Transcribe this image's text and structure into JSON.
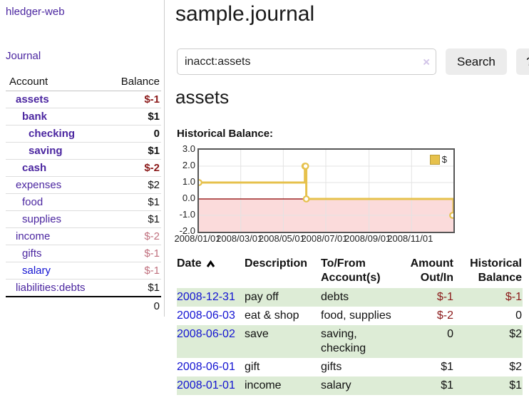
{
  "sidebar": {
    "app_title": "hledger-web",
    "nav_journal": "Journal",
    "header": {
      "account": "Account",
      "balance": "Balance"
    },
    "accounts": [
      {
        "label": "assets",
        "indent": 1,
        "bold": true,
        "balance": "$-1",
        "balance_style": "negstrong"
      },
      {
        "label": "bank",
        "indent": 2,
        "bold": true,
        "balance": "$1",
        "balance_style": "pos"
      },
      {
        "label": "checking",
        "indent": 3,
        "bold": true,
        "balance": "0",
        "balance_style": "pos"
      },
      {
        "label": "saving",
        "indent": 3,
        "bold": true,
        "balance": "$1",
        "balance_style": "pos"
      },
      {
        "label": "cash",
        "indent": 2,
        "bold": true,
        "balance": "$-2",
        "balance_style": "negstrong"
      },
      {
        "label": "expenses",
        "indent": 1,
        "bold": false,
        "balance": "$2",
        "balance_style": "pos"
      },
      {
        "label": "food",
        "indent": 2,
        "bold": false,
        "balance": "$1",
        "balance_style": "pos"
      },
      {
        "label": "supplies",
        "indent": 2,
        "bold": false,
        "balance": "$1",
        "balance_style": "pos"
      },
      {
        "label": "income",
        "indent": 1,
        "bold": false,
        "balance": "$-2",
        "balance_style": "negsoft"
      },
      {
        "label": "gifts",
        "indent": 2,
        "bold": false,
        "balance": "$-1",
        "balance_style": "negsoft"
      },
      {
        "label": "salary",
        "indent": 2,
        "bold": false,
        "balance": "$-1",
        "balance_style": "negsoft",
        "blue": true
      },
      {
        "label": "liabilities:debts",
        "indent": 1,
        "bold": false,
        "balance": "$1",
        "balance_style": "pos",
        "last": true
      }
    ],
    "total": "0"
  },
  "main": {
    "title": "sample.journal",
    "search": {
      "value": "inacct:assets",
      "clear_icon": "×",
      "button_label": "Search",
      "help_label": "?"
    },
    "account_heading": "assets",
    "chart_label": "Historical Balance:"
  },
  "chart_data": {
    "type": "line",
    "title": "Historical Balance",
    "step": true,
    "x_range": [
      "2008-01-01",
      "2008-12-31"
    ],
    "y_range": [
      -2,
      3
    ],
    "y_ticks": [
      {
        "v": 3,
        "label": "3.0"
      },
      {
        "v": 2,
        "label": "2.0"
      },
      {
        "v": 1,
        "label": "1.0"
      },
      {
        "v": 0,
        "label": "0.0"
      },
      {
        "v": -1,
        "label": "-1.0"
      },
      {
        "v": -2,
        "label": "-2.0"
      }
    ],
    "x_ticks": [
      {
        "date": "2008-01-01",
        "label": "2008/01/01"
      },
      {
        "date": "2008-03-01",
        "label": "2008/03/01"
      },
      {
        "date": "2008-05-01",
        "label": "2008/05/01"
      },
      {
        "date": "2008-07-01",
        "label": "2008/07/01"
      },
      {
        "date": "2008-09-01",
        "label": "2008/09/01"
      },
      {
        "date": "2008-11-01",
        "label": "2008/11/01"
      }
    ],
    "series": [
      {
        "name": "$",
        "points": [
          [
            "2008-01-01",
            1
          ],
          [
            "2008-06-01",
            2
          ],
          [
            "2008-06-02",
            2
          ],
          [
            "2008-06-03",
            0
          ],
          [
            "2008-12-31",
            -1
          ]
        ]
      }
    ],
    "legend": [
      {
        "label": "$",
        "color": "#e6c14c"
      }
    ],
    "legend_position": "top-right",
    "grid": true,
    "colors": {
      "line": "#e6c14c",
      "negative_fill": "#fbdbdb",
      "zero_line": "#8b0000",
      "gridline": "#e3e3e3",
      "border": "#565656"
    }
  },
  "register": {
    "headers": {
      "date": "Date",
      "description": "Description",
      "tofrom": "To/From Account(s)",
      "amount": "Amount Out/In",
      "balance": "Historical Balance"
    },
    "rows": [
      {
        "date": "2008-12-31",
        "description": "pay off",
        "accounts": "debts",
        "amount": "$-1",
        "balance": "$-1",
        "amount_neg": true,
        "balance_neg": true
      },
      {
        "date": "2008-06-03",
        "description": "eat & shop",
        "accounts": "food, supplies",
        "amount": "$-2",
        "balance": "0",
        "amount_neg": true,
        "balance_neg": false
      },
      {
        "date": "2008-06-02",
        "description": "save",
        "accounts": "saving, checking",
        "amount": "0",
        "balance": "$2",
        "amount_neg": false,
        "balance_neg": false
      },
      {
        "date": "2008-06-01",
        "description": "gift",
        "accounts": "gifts",
        "amount": "$1",
        "balance": "$2",
        "amount_neg": false,
        "balance_neg": false
      },
      {
        "date": "2008-01-01",
        "description": "income",
        "accounts": "salary",
        "amount": "$1",
        "balance": "$1",
        "amount_neg": false,
        "balance_neg": false
      }
    ]
  }
}
